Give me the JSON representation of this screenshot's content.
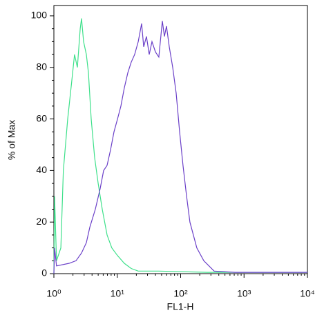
{
  "chart_data": {
    "type": "line",
    "xlabel": "FL1-H",
    "ylabel": "% of Max",
    "xscale": "log",
    "xlim": [
      1,
      10000
    ],
    "xticks": [
      {
        "value": 1,
        "label": "10⁰"
      },
      {
        "value": 10,
        "label": "10¹"
      },
      {
        "value": 100,
        "label": "10²"
      },
      {
        "value": 1000,
        "label": "10³"
      },
      {
        "value": 10000,
        "label": "10⁴"
      }
    ],
    "ylim": [
      0,
      104
    ],
    "yticks": [
      0,
      20,
      40,
      60,
      80,
      100
    ],
    "series": [
      {
        "color": "#3de08a",
        "x": [
          1.0,
          1.025,
          1.1,
          1.29,
          1.41,
          1.65,
          1.92,
          2.12,
          2.35,
          2.6,
          2.73,
          2.94,
          3.25,
          3.51,
          3.88,
          4.4,
          5.0,
          5.8,
          6.9,
          8.2,
          10.1,
          12.9,
          16.6,
          21.4,
          45,
          263,
          10000
        ],
        "values": [
          0,
          30,
          5,
          10,
          40,
          60,
          75,
          85,
          80,
          95,
          99,
          90,
          85,
          78,
          60,
          45,
          35,
          25,
          15,
          10,
          7,
          4,
          2,
          1,
          1,
          0.5,
          0.5
        ]
      },
      {
        "color": "#6a3fc8",
        "x": [
          1.0,
          1.025,
          1.1,
          1.74,
          2.23,
          2.73,
          3.25,
          3.69,
          4.51,
          5.37,
          6.09,
          6.9,
          7.83,
          8.88,
          10.1,
          11.4,
          12.9,
          14.7,
          16.6,
          18.8,
          21.4,
          24.2,
          26.1,
          28.9,
          31.9,
          35.3,
          40.0,
          45.3,
          51.4,
          55.5,
          59.8,
          66.1,
          75.0,
          84.9,
          96.3,
          109,
          124,
          140,
          180,
          232,
          338,
          717,
          10000
        ],
        "values": [
          0,
          10,
          3,
          4,
          5,
          8,
          12,
          18,
          25,
          33,
          40,
          42,
          48,
          55,
          60,
          65,
          72,
          78,
          82,
          85,
          90,
          97,
          88,
          92,
          85,
          90,
          86,
          84,
          98,
          92,
          96,
          88,
          80,
          70,
          55,
          42,
          30,
          20,
          10,
          5,
          1,
          0.5,
          0.5
        ]
      }
    ]
  }
}
